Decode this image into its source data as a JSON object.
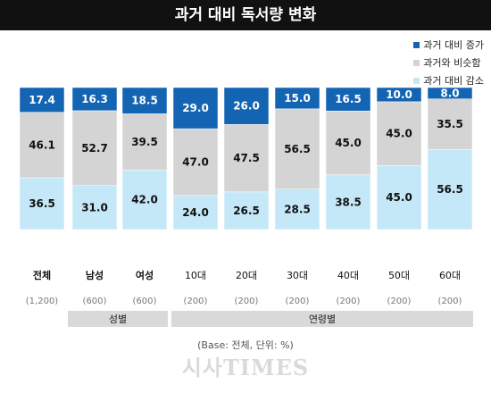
{
  "title": "과거 대비 독서량 변화",
  "legend": [
    {
      "label": "과거 대비 증가",
      "color": "#1464b4"
    },
    {
      "label": "과거와 비슷함",
      "color": "#d4d4d4"
    },
    {
      "label": "과거 대비 감소",
      "color": "#c5e8f8"
    }
  ],
  "groups": [
    {
      "label": "성별"
    },
    {
      "label": "연령별"
    }
  ],
  "base_note": "(Base: 전체, 단위: %)",
  "watermark": "시사TIMES",
  "chart_data": {
    "type": "bar",
    "stacked": true,
    "categories": [
      "전체",
      "남성",
      "여성",
      "10대",
      "20대",
      "30대",
      "40대",
      "50대",
      "60대"
    ],
    "bases": [
      "(1,200)",
      "(600)",
      "(600)",
      "(200)",
      "(200)",
      "(200)",
      "(200)",
      "(200)",
      "(200)"
    ],
    "series": [
      {
        "name": "과거 대비 감소",
        "values": [
          36.5,
          31.0,
          42.0,
          24.0,
          26.5,
          28.5,
          38.5,
          45.0,
          56.5
        ],
        "labels": [
          "36.5",
          "31.0",
          "42.0",
          "24.0",
          "26.5",
          "28.5",
          "38.5",
          "45.0",
          "56.5"
        ]
      },
      {
        "name": "과거와 비슷함",
        "values": [
          46.1,
          52.7,
          39.5,
          47.0,
          47.5,
          56.5,
          45.0,
          45.0,
          35.5
        ],
        "labels": [
          "46.1",
          "52.7",
          "39.5",
          "47.0",
          "47.5",
          "56.5",
          "45.0",
          "45.0",
          "35.5"
        ]
      },
      {
        "name": "과거 대비 증가",
        "values": [
          17.4,
          16.3,
          18.5,
          29.0,
          26.0,
          15.0,
          16.5,
          10.0,
          8.0
        ],
        "labels": [
          "17.4",
          "16.3",
          "18.5",
          "29.0",
          "26.0",
          "15.0",
          "16.5",
          "10.0",
          "8.0"
        ]
      }
    ],
    "colors": [
      "#c5e8f8",
      "#d4d4d4",
      "#1464b4"
    ],
    "label_colors": [
      "#111111",
      "#111111",
      "#ffffff"
    ],
    "ylim": [
      0,
      100
    ]
  }
}
